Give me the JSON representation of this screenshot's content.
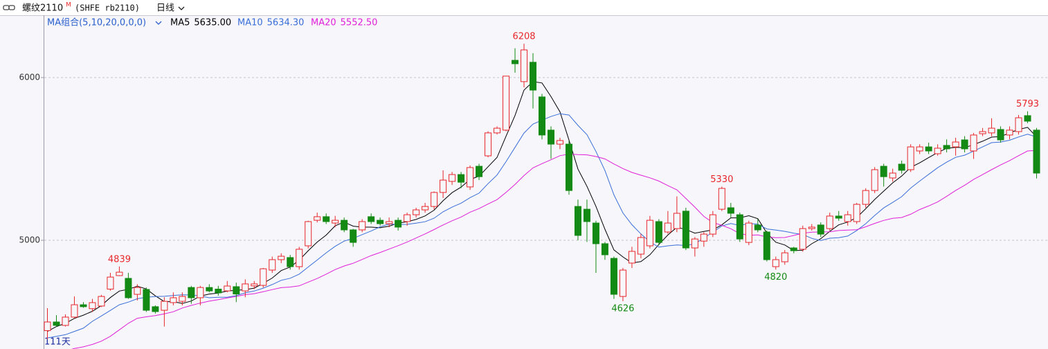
{
  "chart_data": {
    "type": "candlestick",
    "title": "螺纹2110",
    "title_mark": "M",
    "subtitle": "(SHFE rb2110)",
    "period": "日线",
    "ma_group_label": "MA组合(5,10,20,0,0,0)",
    "days_label": "111天",
    "up_color": "#e8262a",
    "down_color": "#138a13",
    "grid": true,
    "ylim": [
      4332,
      6383
    ],
    "yticks": [
      5000,
      6000
    ],
    "open": [
      4445,
      4498,
      4477,
      4528,
      4604,
      4580,
      4596,
      4700,
      4783,
      4766,
      4668,
      4698,
      4592,
      4570,
      4617,
      4625,
      4710,
      4647,
      4710,
      4700,
      4689,
      4715,
      4689,
      4720,
      4723,
      4817,
      4881,
      4894,
      4838,
      4966,
      5123,
      5145,
      5106,
      5123,
      5064,
      5064,
      5145,
      5123,
      5102,
      5123,
      5115,
      5157,
      5187,
      5208,
      5294,
      5362,
      5404,
      5328,
      5455,
      5519,
      5660,
      5677,
      6106,
      5975,
      6094,
      5881,
      5677,
      5591,
      5591,
      5208,
      5191,
      5106,
      4979,
      4889,
      4655,
      4860,
      4915,
      4966,
      5115,
      5051,
      5072,
      5179,
      4953,
      4995,
      5038,
      5191,
      5200,
      5157,
      4987,
      5094,
      5051,
      4838,
      4868,
      4953,
      4945,
      5072,
      5094,
      5072,
      5149,
      5115,
      5115,
      5221,
      5306,
      5455,
      5383,
      5468,
      5434,
      5549,
      5574,
      5532,
      5583,
      5574,
      5617,
      5549,
      5655,
      5660,
      5681,
      5647,
      5668,
      5766,
      5677
    ],
    "high": [
      4583,
      4540,
      4545,
      4655,
      4620,
      4640,
      4665,
      4800,
      4839,
      4800,
      4730,
      4710,
      4600,
      4650,
      4680,
      4680,
      4720,
      4720,
      4730,
      4720,
      4750,
      4740,
      4760,
      4750,
      4830,
      4900,
      4920,
      4910,
      4960,
      5120,
      5170,
      5165,
      5150,
      5140,
      5070,
      5130,
      5165,
      5140,
      5140,
      5140,
      5170,
      5200,
      5230,
      5300,
      5430,
      5420,
      5420,
      5460,
      5470,
      5670,
      5700,
      6010,
      6180,
      6208,
      6150,
      5900,
      5700,
      5630,
      5610,
      5250,
      5250,
      5120,
      4990,
      4900,
      4830,
      4960,
      5040,
      5150,
      5130,
      5180,
      5270,
      5200,
      5020,
      5050,
      5180,
      5330,
      5230,
      5170,
      5120,
      5130,
      5060,
      4900,
      4940,
      4960,
      5090,
      5100,
      5110,
      5170,
      5180,
      5180,
      5230,
      5320,
      5450,
      5470,
      5440,
      5490,
      5590,
      5590,
      5600,
      5590,
      5620,
      5630,
      5640,
      5660,
      5690,
      5750,
      5700,
      5700,
      5770,
      5793,
      5690
    ],
    "low": [
      4392,
      4468,
      4470,
      4520,
      4585,
      4560,
      4590,
      4690,
      4780,
      4640,
      4630,
      4560,
      4550,
      4470,
      4600,
      4600,
      4610,
      4600,
      4680,
      4660,
      4680,
      4620,
      4650,
      4700,
      4710,
      4800,
      4860,
      4820,
      4820,
      4950,
      5110,
      5100,
      5080,
      5050,
      4960,
      5050,
      5100,
      5090,
      5080,
      5060,
      5090,
      5140,
      5170,
      5190,
      5260,
      5340,
      5320,
      5310,
      5370,
      5510,
      5650,
      5670,
      6030,
      5940,
      5810,
      5620,
      5500,
      5560,
      5280,
      5000,
      4990,
      4800,
      4880,
      4640,
      4626,
      4830,
      4890,
      4950,
      4970,
      5040,
      5050,
      4940,
      4900,
      4960,
      5020,
      5180,
      5140,
      4990,
      4970,
      5050,
      4870,
      4820,
      4850,
      4920,
      4930,
      5060,
      5020,
      5060,
      5120,
      5090,
      5100,
      5200,
      5290,
      5330,
      5360,
      5410,
      5420,
      5530,
      5530,
      5520,
      5540,
      5520,
      5540,
      5500,
      5640,
      5640,
      5600,
      5620,
      5650,
      5720,
      5380
    ],
    "close": [
      4498,
      4477,
      4528,
      4604,
      4592,
      4617,
      4655,
      4774,
      4804,
      4647,
      4710,
      4570,
      4562,
      4625,
      4647,
      4655,
      4647,
      4710,
      4689,
      4677,
      4719,
      4670,
      4732,
      4732,
      4825,
      4881,
      4902,
      4838,
      4945,
      5115,
      5145,
      5115,
      5123,
      5064,
      4987,
      5115,
      5115,
      5102,
      5115,
      5081,
      5157,
      5187,
      5208,
      5294,
      5370,
      5404,
      5357,
      5447,
      5391,
      5660,
      5689,
      6009,
      6085,
      6170,
      5923,
      5647,
      5591,
      5613,
      5306,
      5030,
      5115,
      4979,
      4911,
      4668,
      4817,
      4932,
      5017,
      5123,
      4987,
      5106,
      5166,
      4953,
      5008,
      5038,
      5157,
      5319,
      5166,
      5008,
      5106,
      5064,
      4881,
      4881,
      4923,
      4936,
      5072,
      5081,
      5038,
      5149,
      5136,
      5157,
      5221,
      5306,
      5434,
      5391,
      5413,
      5430,
      5574,
      5574,
      5549,
      5566,
      5562,
      5604,
      5562,
      5647,
      5668,
      5689,
      5617,
      5677,
      5753,
      5732,
      5413
    ],
    "high_labels": [
      null,
      null,
      null,
      null,
      null,
      null,
      null,
      null,
      "4839",
      null,
      null,
      null,
      null,
      null,
      null,
      null,
      null,
      null,
      null,
      null,
      null,
      null,
      null,
      null,
      null,
      null,
      null,
      null,
      null,
      null,
      null,
      null,
      null,
      null,
      null,
      null,
      null,
      null,
      null,
      null,
      null,
      null,
      null,
      null,
      null,
      null,
      null,
      null,
      null,
      null,
      null,
      null,
      null,
      "6208",
      null,
      null,
      null,
      null,
      null,
      null,
      null,
      null,
      null,
      null,
      null,
      null,
      null,
      null,
      null,
      null,
      null,
      null,
      null,
      null,
      null,
      "5330",
      null,
      null,
      null,
      null,
      null,
      null,
      null,
      null,
      null,
      null,
      null,
      null,
      null,
      null,
      null,
      null,
      null,
      null,
      null,
      null,
      null,
      null,
      null,
      null,
      null,
      null,
      null,
      null,
      null,
      null,
      null,
      null,
      null,
      "5793",
      null
    ],
    "low_labels": [
      null,
      null,
      null,
      null,
      null,
      null,
      null,
      null,
      null,
      null,
      null,
      null,
      null,
      null,
      null,
      null,
      null,
      null,
      null,
      null,
      null,
      null,
      null,
      null,
      null,
      null,
      null,
      null,
      null,
      null,
      null,
      null,
      null,
      null,
      null,
      null,
      null,
      null,
      null,
      null,
      null,
      null,
      null,
      null,
      null,
      null,
      null,
      null,
      null,
      null,
      null,
      null,
      null,
      null,
      null,
      null,
      null,
      null,
      null,
      null,
      null,
      null,
      null,
      null,
      "4626",
      null,
      null,
      null,
      null,
      null,
      null,
      null,
      null,
      null,
      null,
      null,
      null,
      null,
      null,
      null,
      null,
      "4820",
      null,
      null,
      null,
      null,
      null,
      null,
      null,
      null,
      null,
      null,
      null,
      null,
      null,
      null,
      null,
      null,
      null,
      null,
      null,
      null,
      null,
      null,
      null,
      null,
      null,
      null,
      null,
      null,
      null
    ],
    "series": [
      {
        "name": "MA5",
        "color": "#000000",
        "last_value_label": "5635.00",
        "values": [
          4440,
          4470,
          4490,
          4520,
          4540,
          4564,
          4599,
          4648,
          4688,
          4699,
          4718,
          4701,
          4659,
          4623,
          4623,
          4612,
          4627,
          4657,
          4670,
          4676,
          4688,
          4693,
          4697,
          4706,
          4736,
          4768,
          4814,
          4836,
          4878,
          4936,
          4989,
          5032,
          5089,
          5112,
          5087,
          5081,
          5081,
          5077,
          5087,
          5106,
          5114,
          5128,
          5150,
          5185,
          5243,
          5293,
          5327,
          5374,
          5394,
          5452,
          5509,
          5639,
          5767,
          5923,
          5975,
          5967,
          5883,
          5789,
          5616,
          5437,
          5331,
          5209,
          5068,
          4941,
          4898,
          4861,
          4869,
          4911,
          4975,
          5033,
          5080,
          5067,
          5044,
          5054,
          5064,
          5095,
          5138,
          5138,
          5151,
          5133,
          5045,
          4988,
          4971,
          4937,
          4939,
          4979,
          5010,
          5055,
          5095,
          5112,
          5140,
          5194,
          5251,
          5302,
          5353,
          5395,
          5448,
          5476,
          5508,
          5539,
          5565,
          5571,
          5569,
          5588,
          5609,
          5634,
          5637,
          5660,
          5681,
          5694,
          5635
        ]
      },
      {
        "name": "MA10",
        "color": "#3a6ed8",
        "last_value_label": "5634.30",
        "values": [
          4400,
          4410,
          4420,
          4440,
          4460,
          4502,
          4535,
          4569,
          4604,
          4620,
          4641,
          4650,
          4654,
          4656,
          4661,
          4665,
          4664,
          4658,
          4647,
          4650,
          4650,
          4660,
          4677,
          4688,
          4706,
          4728,
          4754,
          4767,
          4792,
          4836,
          4879,
          4923,
          4963,
          4995,
          5012,
          5035,
          5057,
          5083,
          5100,
          5097,
          5098,
          5105,
          5114,
          5136,
          5175,
          5204,
          5228,
          5262,
          5290,
          5348,
          5401,
          5483,
          5571,
          5659,
          5714,
          5738,
          5761,
          5778,
          5770,
          5706,
          5649,
          5546,
          5429,
          5279,
          5168,
          5096,
          5039,
          4990,
          4958,
          4966,
          4971,
          4968,
          4978,
          5015,
          5049,
          5088,
          5103,
          5091,
          5103,
          5099,
          5070,
          5063,
          5055,
          5044,
          5036,
          5012,
          4999,
          5013,
          5016,
          5026,
          5060,
          5102,
          5153,
          5199,
          5233,
          5268,
          5321,
          5364,
          5405,
          5446,
          5480,
          5510,
          5523,
          5548,
          5574,
          5600,
          5604,
          5615,
          5635,
          5652,
          5634.3
        ]
      },
      {
        "name": "MA20",
        "color": "#e020d8",
        "last_value_label": "5552.50",
        "values": [
          4290,
          4305,
          4320,
          4335,
          4345,
          4360,
          4380,
          4410,
          4450,
          4490,
          4521,
          4530,
          4537,
          4548,
          4561,
          4584,
          4600,
          4614,
          4626,
          4635,
          4646,
          4655,
          4666,
          4672,
          4684,
          4697,
          4709,
          4713,
          4720,
          4743,
          4765,
          4792,
          4820,
          4842,
          4859,
          4882,
          4906,
          4925,
          4946,
          4967,
          4989,
          5014,
          5039,
          5066,
          5094,
          5120,
          5143,
          5173,
          5195,
          5223,
          5250,
          5294,
          5343,
          5398,
          5445,
          5471,
          5495,
          5520,
          5530,
          5527,
          5525,
          5515,
          5500,
          5469,
          5441,
          5417,
          5400,
          5384,
          5364,
          5336,
          5310,
          5257,
          5204,
          5147,
          5109,
          5092,
          5071,
          5041,
          5031,
          5033,
          5021,
          5016,
          5017,
          5030,
          5043,
          5050,
          5051,
          5052,
          5060,
          5063,
          5065,
          5083,
          5104,
          5122,
          5135,
          5140,
          5160,
          5189,
          5211,
          5236,
          5270,
          5306,
          5338,
          5374,
          5404,
          5434,
          5463,
          5490,
          5520,
          5549,
          5552.5
        ]
      }
    ]
  }
}
